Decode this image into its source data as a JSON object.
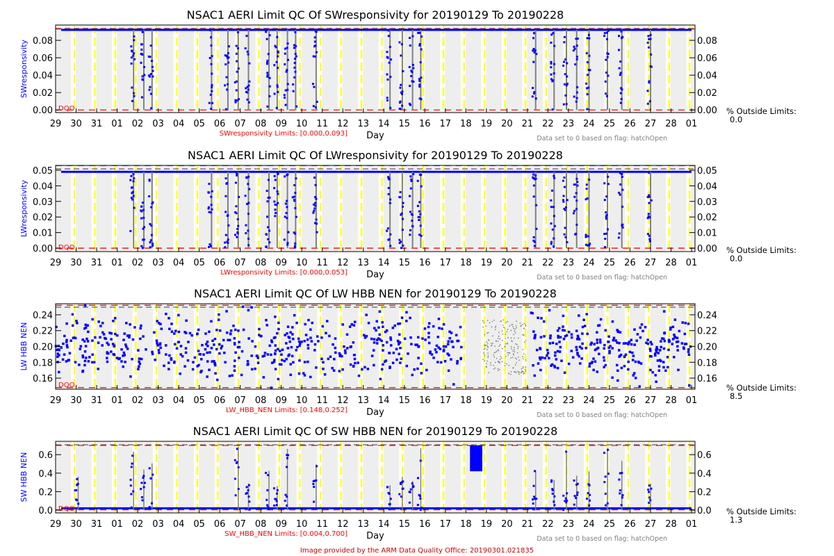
{
  "chart_data": [
    {
      "type": "scatter",
      "title": "NSAC1 AERI Limit QC Of SWresponsivity for 20190129 To 20190228",
      "ylabel": "SWresponsivity",
      "xlabel": "Day",
      "limits_label": "SWresponsivity Limits: [0.000,0.093]",
      "limits": [
        0.0,
        0.093
      ],
      "ylim": [
        -0.003,
        0.0976
      ],
      "yticks": [
        "0.00",
        "0.02",
        "0.04",
        "0.06",
        "0.08"
      ],
      "ytick_values": [
        0,
        0.02,
        0.04,
        0.06,
        0.08
      ],
      "typical_value": 0.092,
      "pattern": "flat",
      "dropout_days": [
        3.7,
        4.2,
        4.6,
        7.5,
        8.3,
        8.8,
        9.3,
        10.3,
        10.7,
        11.2,
        11.6,
        12.6,
        16.2,
        16.8,
        17.3,
        17.7,
        23.3,
        24.2,
        24.8,
        25.3,
        25.9,
        26.8,
        27.5,
        28.9
      ],
      "dqo_label": "DQO",
      "note": "Data set to 0 based on flag: hatchOpen",
      "pct_label": "% Outside Limits:",
      "pct_value": "0.0"
    },
    {
      "type": "scatter",
      "title": "NSAC1 AERI Limit QC Of LWresponsivity for 20190129 To 20190228",
      "ylabel": "LWresponsivity",
      "xlabel": "Day",
      "limits_label": "LWresponsivity Limits: [0.000,0.053]",
      "limits": [
        0.0,
        0.053
      ],
      "ylim": [
        -0.0022,
        0.0531
      ],
      "yticks": [
        "0.00",
        "0.01",
        "0.02",
        "0.03",
        "0.04",
        "0.05"
      ],
      "ytick_values": [
        0,
        0.01,
        0.02,
        0.03,
        0.04,
        0.05
      ],
      "typical_value": 0.049,
      "pattern": "flat",
      "dropout_days": [
        3.7,
        4.2,
        4.6,
        7.5,
        8.3,
        8.8,
        9.3,
        10.3,
        10.7,
        11.2,
        11.6,
        12.6,
        16.2,
        16.8,
        17.3,
        17.7,
        23.3,
        24.2,
        24.8,
        25.3,
        25.9,
        26.8,
        27.5,
        28.9
      ],
      "dqo_label": "DQO",
      "note": "Data set to 0 based on flag: hatchOpen",
      "pct_label": "% Outside Limits:",
      "pct_value": "0.0"
    },
    {
      "type": "scatter",
      "title": "NSAC1 AERI Limit QC Of LW HBB NEN for 20190129 To 20190228",
      "ylabel": "LW HBB NEN",
      "xlabel": "Day",
      "limits_label": "LW_HBB_NEN Limits: [0.148,0.252]",
      "limits": [
        0.148,
        0.252
      ],
      "ylim": [
        0.146,
        0.254
      ],
      "yticks": [
        "0.16",
        "0.18",
        "0.20",
        "0.22",
        "0.24"
      ],
      "ytick_values": [
        0.16,
        0.18,
        0.2,
        0.22,
        0.24
      ],
      "typical_value": 0.2,
      "spread": 0.025,
      "pattern": "scatter",
      "dropout_days": [],
      "dqo_label": "DQO",
      "note": "Data set to 0 based on flag: hatchOpen",
      "pct_label": "% Outside Limits:",
      "pct_value": "8.5"
    },
    {
      "type": "scatter",
      "title": "NSAC1 AERI Limit QC Of SW HBB NEN for 20190129 To 20190228",
      "ylabel": "SW HBB NEN",
      "xlabel": "Day",
      "limits_label": "SW_HBB_NEN Limits: [0.004,0.700]",
      "limits": [
        0.004,
        0.7
      ],
      "ylim": [
        -0.03,
        0.744
      ],
      "yticks": [
        "0.0",
        "0.2",
        "0.4",
        "0.6"
      ],
      "ytick_values": [
        0,
        0.2,
        0.4,
        0.6
      ],
      "typical_value": 0.02,
      "pattern": "spikes",
      "dropout_days": [
        1.0,
        3.7,
        4.2,
        4.6,
        8.8,
        9.3,
        10.3,
        10.7,
        11.2,
        12.6,
        16.2,
        16.8,
        17.3,
        17.7,
        23.3,
        24.2,
        24.8,
        25.3,
        25.9,
        26.8,
        27.5,
        28.9
      ],
      "dqo_label": "DQO",
      "note": "Data set to 0 based on flag: hatchOpen",
      "pct_label": "% Outside Limits:",
      "pct_value": "1.3"
    }
  ],
  "xticks": [
    "29",
    "30",
    "31",
    "01",
    "02",
    "03",
    "04",
    "05",
    "06",
    "07",
    "08",
    "09",
    "10",
    "11",
    "12",
    "13",
    "14",
    "15",
    "16",
    "17",
    "18",
    "19",
    "20",
    "21",
    "22",
    "23",
    "24",
    "25",
    "26",
    "27",
    "28",
    "01"
  ],
  "footer": "Image provided by the ARM Data Quality Office: 20190301.021835",
  "colors": {
    "data": "#0000ff",
    "limit": "#ff0000",
    "flagged": "#808080",
    "day_line": "#ffff00",
    "background": "#eeeeee"
  }
}
